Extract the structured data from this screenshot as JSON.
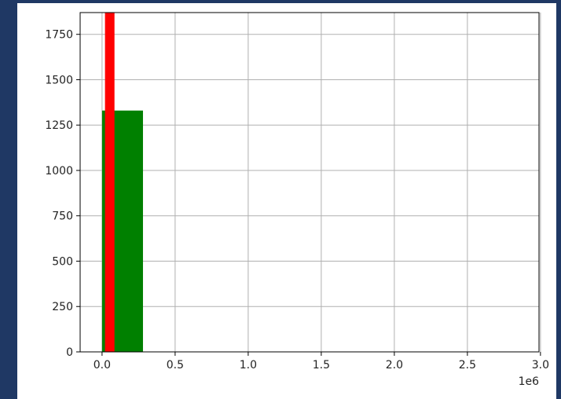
{
  "chart_data": {
    "type": "bar",
    "title": "",
    "xlabel": "",
    "ylabel": "",
    "x_offset_label": "1e6",
    "xlim": [
      -0.15,
      2.99
    ],
    "ylim": [
      0,
      1870
    ],
    "grid": true,
    "x_ticks": [
      0.0,
      0.5,
      1.0,
      1.5,
      2.0,
      2.5,
      3.0
    ],
    "x_tick_labels": [
      "0.0",
      "0.5",
      "1.0",
      "1.5",
      "2.0",
      "2.5",
      "3.0"
    ],
    "y_ticks": [
      0,
      250,
      500,
      750,
      1000,
      1250,
      1500,
      1750
    ],
    "y_tick_labels": [
      "0",
      "250",
      "500",
      "750",
      "1000",
      "1250",
      "1500",
      "1750"
    ],
    "series": [
      {
        "color": "#008000",
        "bins": [
          {
            "x0": 0.0,
            "x1": 0.28,
            "value": 1330
          }
        ]
      },
      {
        "color": "#ff0000",
        "bins": [
          {
            "x0": 0.02,
            "x1": 0.085,
            "value": 1870
          }
        ]
      }
    ]
  }
}
